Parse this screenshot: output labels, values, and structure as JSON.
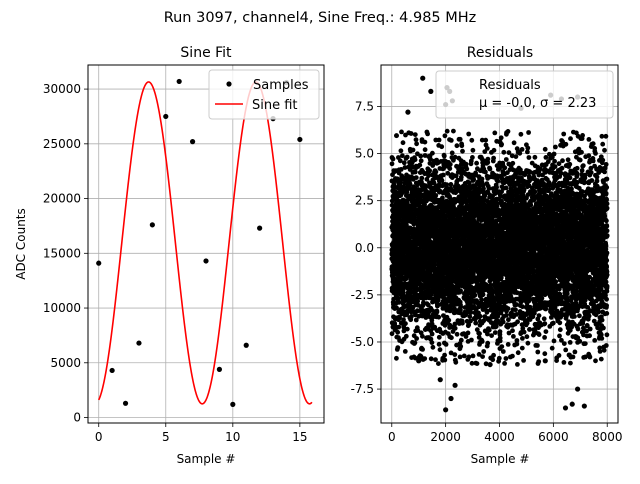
{
  "suptitle": "Run 3097, channel4, Sine Freq.: 4.985 MHz",
  "chart_data": [
    {
      "type": "line",
      "title": "Sine Fit",
      "xlabel": "Sample #",
      "ylabel": "ADC Counts",
      "xlim": [
        -0.8,
        16.8
      ],
      "ylim": [
        -500,
        32200
      ],
      "xticks": [
        0,
        5,
        10,
        15
      ],
      "yticks": [
        0,
        5000,
        10000,
        15000,
        20000,
        25000,
        30000
      ],
      "grid": true,
      "legend": "top-right",
      "series": [
        {
          "name": "Samples",
          "style": "markers",
          "color": "#000000",
          "x": [
            0,
            1,
            2,
            3,
            4,
            5,
            6,
            7,
            8,
            9,
            10,
            11,
            12,
            13,
            14,
            15
          ],
          "values": [
            14100,
            4300,
            1300,
            6800,
            17600,
            27500,
            30700,
            25200,
            14300,
            4400,
            1200,
            6600,
            17300,
            27300,
            30600,
            25400
          ]
        },
        {
          "name": "Sine fit",
          "style": "line",
          "color": "#ff0000",
          "model": {
            "offset": 15950,
            "amplitude": 14700,
            "period_samples": 8.0,
            "phase_at_zero": -1.35,
            "x_range": [
              0,
              15.9
            ]
          }
        }
      ]
    },
    {
      "type": "scatter",
      "title": "Residuals",
      "xlabel": "Sample #",
      "ylabel": "",
      "xlim": [
        -400,
        8400
      ],
      "ylim": [
        -9.3,
        9.7
      ],
      "xticks": [
        0,
        2000,
        4000,
        6000,
        8000
      ],
      "yticks": [
        -7.5,
        -5.0,
        -2.5,
        0.0,
        2.5,
        5.0,
        7.5
      ],
      "grid": true,
      "legend": "top-right",
      "series": [
        {
          "name": "Residuals",
          "label_line2": "μ = -0.0, σ = 2.23",
          "color": "#000000",
          "n_points": 8000,
          "mean": 0.0,
          "sigma": 2.23,
          "outliers": [
            [
              1150,
              9.0
            ],
            [
              1450,
              8.3
            ],
            [
              2050,
              8.5
            ],
            [
              2150,
              8.3
            ],
            [
              2000,
              7.6
            ],
            [
              2250,
              7.8
            ],
            [
              5900,
              8.1
            ],
            [
              6300,
              7.9
            ],
            [
              600,
              7.2
            ],
            [
              2000,
              -8.6
            ],
            [
              2200,
              -8.0
            ],
            [
              6450,
              -8.5
            ],
            [
              6700,
              -8.3
            ],
            [
              7150,
              -8.4
            ],
            [
              6900,
              -7.5
            ],
            [
              1800,
              -7.0
            ],
            [
              2350,
              -7.3
            ],
            [
              1000,
              -6.0
            ],
            [
              3650,
              -6.2
            ],
            [
              5700,
              -6.0
            ],
            [
              6900,
              8.0
            ],
            [
              4800,
              7.4
            ]
          ]
        }
      ]
    }
  ]
}
